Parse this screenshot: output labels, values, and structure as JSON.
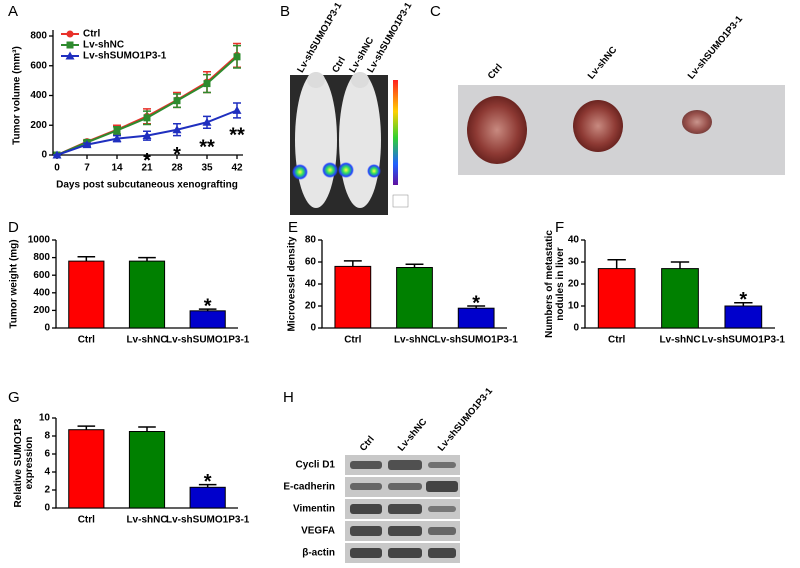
{
  "panel_labels": [
    "A",
    "B",
    "C",
    "D",
    "E",
    "F",
    "G",
    "H"
  ],
  "chart_data": [
    {
      "type": "line",
      "xlabel": "Days post subcutaneous xenografting",
      "ylabel": "Tumor volume (mm³)",
      "x": [
        0,
        7,
        14,
        21,
        28,
        35,
        42
      ],
      "xlim": [
        0,
        42
      ],
      "xticks": [
        0,
        7,
        14,
        21,
        28,
        35,
        42
      ],
      "ylim": [
        0,
        800
      ],
      "yticks": [
        0,
        200,
        400,
        600,
        800
      ],
      "legend": "upper left",
      "series": [
        {
          "name": "Ctrl",
          "color": "#e8312a",
          "marker": "circle",
          "values": [
            0,
            90,
            170,
            260,
            370,
            490,
            670
          ],
          "errors": [
            0,
            10,
            30,
            50,
            50,
            70,
            80
          ]
        },
        {
          "name": "Lv-shNC",
          "color": "#2e8b2e",
          "marker": "square",
          "values": [
            0,
            85,
            165,
            250,
            365,
            480,
            660
          ],
          "errors": [
            0,
            10,
            25,
            45,
            45,
            60,
            75
          ]
        },
        {
          "name": "Lv-shSUMO1P3-1",
          "color": "#1f2fbf",
          "marker": "triangle",
          "values": [
            0,
            70,
            110,
            130,
            170,
            220,
            300
          ],
          "errors": [
            0,
            10,
            20,
            30,
            40,
            40,
            50
          ]
        }
      ],
      "annotations": [
        {
          "text": "*",
          "x": 21
        },
        {
          "text": "*",
          "x": 28
        },
        {
          "text": "**",
          "x": 35
        },
        {
          "text": "**",
          "x": 42
        }
      ]
    },
    {
      "type": "bar",
      "ylabel": [
        "Tumor weight (mg)"
      ],
      "categories": [
        "Ctrl",
        "Lv-shNC",
        "Lv-shSUMO1P3-1"
      ],
      "values": [
        760,
        760,
        195
      ],
      "errors": [
        50,
        40,
        20
      ],
      "colors": [
        "#ff0000",
        "#008000",
        "#0000cc"
      ],
      "ylim": [
        0,
        1000
      ],
      "yticks": [
        0,
        200,
        400,
        600,
        800,
        1000
      ],
      "annotations": [
        {
          "text": "*",
          "index": 2
        }
      ]
    },
    {
      "type": "bar",
      "ylabel": [
        "Microvessel density"
      ],
      "categories": [
        "Ctrl",
        "Lv-shNC",
        "Lv-shSUMO1P3-1"
      ],
      "values": [
        56,
        55,
        18
      ],
      "errors": [
        5,
        3,
        2
      ],
      "colors": [
        "#ff0000",
        "#008000",
        "#0000cc"
      ],
      "ylim": [
        0,
        80
      ],
      "yticks": [
        0,
        20,
        40,
        60,
        80
      ],
      "annotations": [
        {
          "text": "*",
          "index": 2
        }
      ]
    },
    {
      "type": "bar",
      "ylabel": [
        "Numbers of metastatic",
        "nodules in liver"
      ],
      "categories": [
        "Ctrl",
        "Lv-shNC",
        "Lv-shSUMO1P3-1"
      ],
      "values": [
        27,
        27,
        10
      ],
      "errors": [
        4,
        3,
        1.5
      ],
      "colors": [
        "#ff0000",
        "#008000",
        "#0000cc"
      ],
      "ylim": [
        0,
        40
      ],
      "yticks": [
        0,
        10,
        20,
        30,
        40
      ],
      "annotations": [
        {
          "text": "*",
          "index": 2
        }
      ]
    },
    {
      "type": "bar",
      "ylabel": [
        "Relative SUMO1P3",
        "expression"
      ],
      "categories": [
        "Ctrl",
        "Lv-shNC",
        "Lv-shSUMO1P3-1"
      ],
      "values": [
        8.7,
        8.5,
        2.3
      ],
      "errors": [
        0.4,
        0.5,
        0.3
      ],
      "colors": [
        "#ff0000",
        "#008000",
        "#0000cc"
      ],
      "ylim": [
        0,
        10
      ],
      "yticks": [
        0,
        2,
        4,
        6,
        8,
        10
      ],
      "annotations": [
        {
          "text": "*",
          "index": 2
        }
      ]
    }
  ],
  "panel_b": {
    "labels": [
      "Lv-shSUMO1P3-1",
      "Ctrl",
      "Lv-shNC",
      "Lv-shSUMO1P3-1"
    ]
  },
  "panel_c": {
    "labels": [
      "Ctrl",
      "Lv-shNC",
      "Lv-shSUMO1P3-1"
    ]
  },
  "panel_h": {
    "columns": [
      "Ctrl",
      "Lv-shNC",
      "Lv-shSUMO1P3-1"
    ],
    "rows": [
      "Cycli D1",
      "E-cadherin",
      "Vimentin",
      "VEGFA",
      "β-actin"
    ]
  }
}
